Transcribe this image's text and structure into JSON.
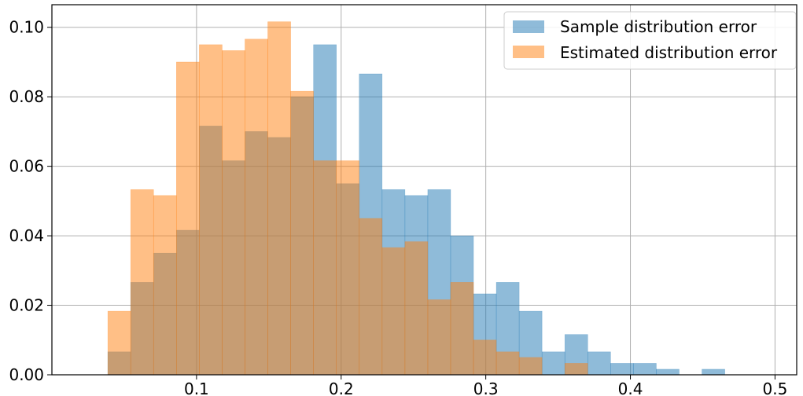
{
  "chart_data": {
    "type": "bar",
    "title": "",
    "xlabel": "",
    "ylabel": "",
    "xlim": [
      0.0,
      0.515
    ],
    "ylim": [
      0.0,
      0.1065
    ],
    "grid": true,
    "legend_position": "top-right",
    "x_ticks": [
      {
        "value": 0.1,
        "label": "0.1"
      },
      {
        "value": 0.2,
        "label": "0.2"
      },
      {
        "value": 0.3,
        "label": "0.3"
      },
      {
        "value": 0.4,
        "label": "0.4"
      },
      {
        "value": 0.5,
        "label": "0.5"
      }
    ],
    "y_ticks": [
      {
        "value": 0.0,
        "label": "0.00"
      },
      {
        "value": 0.02,
        "label": "0.02"
      },
      {
        "value": 0.04,
        "label": "0.04"
      },
      {
        "value": 0.06,
        "label": "0.06"
      },
      {
        "value": 0.08,
        "label": "0.08"
      },
      {
        "value": 0.1,
        "label": "0.10"
      }
    ],
    "series": [
      {
        "name": "Sample distribution error",
        "color": "#1f77b4",
        "alpha": 0.5,
        "bins": [
          {
            "x0": 0.0387,
            "x1": 0.0545,
            "value": 0.0066
          },
          {
            "x0": 0.0545,
            "x1": 0.0703,
            "value": 0.0266
          },
          {
            "x0": 0.0703,
            "x1": 0.0861,
            "value": 0.035
          },
          {
            "x0": 0.0861,
            "x1": 0.1019,
            "value": 0.0416
          },
          {
            "x0": 0.1019,
            "x1": 0.1177,
            "value": 0.0716
          },
          {
            "x0": 0.1177,
            "x1": 0.1335,
            "value": 0.0616
          },
          {
            "x0": 0.1335,
            "x1": 0.1493,
            "value": 0.07
          },
          {
            "x0": 0.1493,
            "x1": 0.1651,
            "value": 0.0683
          },
          {
            "x0": 0.1651,
            "x1": 0.1809,
            "value": 0.08
          },
          {
            "x0": 0.1809,
            "x1": 0.1967,
            "value": 0.095
          },
          {
            "x0": 0.1967,
            "x1": 0.2125,
            "value": 0.055
          },
          {
            "x0": 0.2125,
            "x1": 0.2283,
            "value": 0.0866
          },
          {
            "x0": 0.2283,
            "x1": 0.2441,
            "value": 0.0533
          },
          {
            "x0": 0.2441,
            "x1": 0.2599,
            "value": 0.0516
          },
          {
            "x0": 0.2599,
            "x1": 0.2757,
            "value": 0.0533
          },
          {
            "x0": 0.2757,
            "x1": 0.2915,
            "value": 0.04
          },
          {
            "x0": 0.2915,
            "x1": 0.3073,
            "value": 0.0233
          },
          {
            "x0": 0.3073,
            "x1": 0.3231,
            "value": 0.0266
          },
          {
            "x0": 0.3231,
            "x1": 0.3389,
            "value": 0.0183
          },
          {
            "x0": 0.3389,
            "x1": 0.3547,
            "value": 0.0066
          },
          {
            "x0": 0.3547,
            "x1": 0.3705,
            "value": 0.0116
          },
          {
            "x0": 0.3705,
            "x1": 0.3863,
            "value": 0.0066
          },
          {
            "x0": 0.3863,
            "x1": 0.4021,
            "value": 0.0033
          },
          {
            "x0": 0.4021,
            "x1": 0.4179,
            "value": 0.0033
          },
          {
            "x0": 0.4179,
            "x1": 0.4337,
            "value": 0.0016
          },
          {
            "x0": 0.4337,
            "x1": 0.4495,
            "value": 0.0
          },
          {
            "x0": 0.4495,
            "x1": 0.4653,
            "value": 0.0016
          }
        ]
      },
      {
        "name": "Estimated distribution error",
        "color": "#ff7f0e",
        "alpha": 0.5,
        "bins": [
          {
            "x0": 0.0387,
            "x1": 0.0545,
            "value": 0.0183
          },
          {
            "x0": 0.0545,
            "x1": 0.0703,
            "value": 0.0533
          },
          {
            "x0": 0.0703,
            "x1": 0.0861,
            "value": 0.0516
          },
          {
            "x0": 0.0861,
            "x1": 0.1019,
            "value": 0.09
          },
          {
            "x0": 0.1019,
            "x1": 0.1177,
            "value": 0.095
          },
          {
            "x0": 0.1177,
            "x1": 0.1335,
            "value": 0.0933
          },
          {
            "x0": 0.1335,
            "x1": 0.1493,
            "value": 0.0966
          },
          {
            "x0": 0.1493,
            "x1": 0.1651,
            "value": 0.1016
          },
          {
            "x0": 0.1651,
            "x1": 0.1809,
            "value": 0.0816
          },
          {
            "x0": 0.1809,
            "x1": 0.1967,
            "value": 0.0616
          },
          {
            "x0": 0.1967,
            "x1": 0.2125,
            "value": 0.0616
          },
          {
            "x0": 0.2125,
            "x1": 0.2283,
            "value": 0.045
          },
          {
            "x0": 0.2283,
            "x1": 0.2441,
            "value": 0.0366
          },
          {
            "x0": 0.2441,
            "x1": 0.2599,
            "value": 0.0383
          },
          {
            "x0": 0.2599,
            "x1": 0.2757,
            "value": 0.0216
          },
          {
            "x0": 0.2757,
            "x1": 0.2915,
            "value": 0.0266
          },
          {
            "x0": 0.2915,
            "x1": 0.3073,
            "value": 0.01
          },
          {
            "x0": 0.3073,
            "x1": 0.3231,
            "value": 0.0066
          },
          {
            "x0": 0.3231,
            "x1": 0.3389,
            "value": 0.005
          },
          {
            "x0": 0.3389,
            "x1": 0.3547,
            "value": 0.0
          },
          {
            "x0": 0.3547,
            "x1": 0.3705,
            "value": 0.0033
          }
        ]
      }
    ]
  }
}
